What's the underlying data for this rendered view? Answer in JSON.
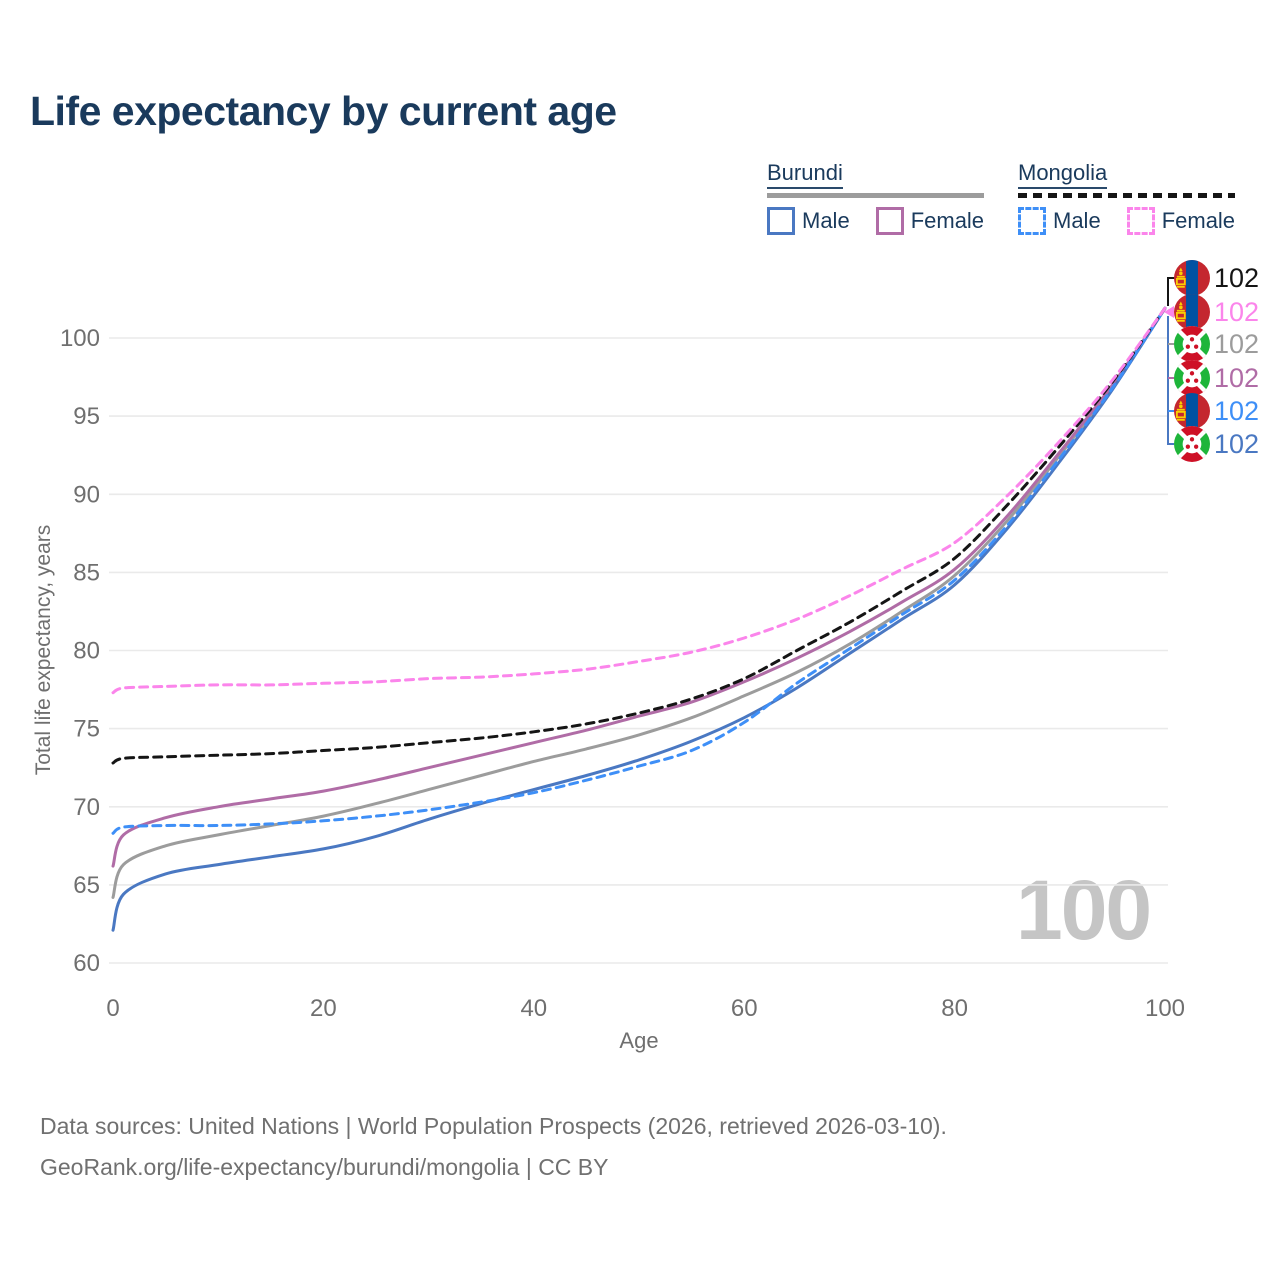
{
  "header": {
    "title": "Life expectancy by current age"
  },
  "legend": {
    "groups": [
      {
        "label": "Burundi",
        "line_style": "solid",
        "items": [
          {
            "label": "Male",
            "color": "#4A78C2"
          },
          {
            "label": "Female",
            "color": "#B06CA6"
          }
        ]
      },
      {
        "label": "Mongolia",
        "line_style": "dashed",
        "items": [
          {
            "label": "Male",
            "color": "#3E8FF7"
          },
          {
            "label": "Female",
            "color": "#FB85EB"
          }
        ]
      }
    ]
  },
  "chart": {
    "watermark": "100"
  },
  "chart_data": {
    "type": "line",
    "title": "Life expectancy by current age",
    "xlabel": "Age",
    "ylabel": "Total life expectancy, years",
    "xlim": [
      0,
      100
    ],
    "ylim": [
      58.5,
      104
    ],
    "x_ticks": [
      0,
      20,
      40,
      60,
      80,
      100
    ],
    "y_ticks": [
      60,
      65,
      70,
      75,
      80,
      85,
      90,
      95,
      100
    ],
    "grid": "horizontal-only",
    "legend_position": "top-right",
    "x": [
      0,
      1,
      5,
      10,
      15,
      20,
      25,
      30,
      35,
      40,
      45,
      50,
      55,
      60,
      65,
      70,
      75,
      80,
      85,
      90,
      95,
      100
    ],
    "series": [
      {
        "name": "Burundi Total",
        "country": "Burundi",
        "sex": "Total",
        "color": "#9C9C9C",
        "dash": false,
        "values": [
          64.2,
          66.3,
          67.5,
          68.2,
          68.8,
          69.4,
          70.2,
          71.1,
          72.0,
          72.9,
          73.7,
          74.6,
          75.7,
          77.1,
          78.6,
          80.4,
          82.5,
          84.8,
          88.3,
          92.5,
          96.9,
          101.9
        ]
      },
      {
        "name": "Burundi Female",
        "country": "Burundi",
        "sex": "Female",
        "color": "#B06CA6",
        "dash": false,
        "values": [
          66.2,
          68.2,
          69.3,
          70.0,
          70.5,
          71.0,
          71.7,
          72.5,
          73.3,
          74.1,
          74.9,
          75.8,
          76.7,
          78.0,
          79.5,
          81.2,
          83.1,
          85.2,
          88.6,
          92.7,
          97.0,
          101.9
        ]
      },
      {
        "name": "Burundi Male",
        "country": "Burundi",
        "sex": "Male",
        "color": "#4A78C2",
        "dash": false,
        "values": [
          62.1,
          64.4,
          65.7,
          66.3,
          66.8,
          67.3,
          68.1,
          69.2,
          70.2,
          71.1,
          72.0,
          73.0,
          74.2,
          75.7,
          77.6,
          79.8,
          82.0,
          84.2,
          87.8,
          92.1,
          96.7,
          101.9
        ]
      },
      {
        "name": "Mongolia Male",
        "country": "Mongolia",
        "sex": "Male",
        "color": "#3E8FF7",
        "dash": true,
        "values": [
          68.3,
          68.7,
          68.8,
          68.8,
          68.9,
          69.1,
          69.4,
          69.8,
          70.3,
          70.9,
          71.7,
          72.6,
          73.6,
          75.4,
          77.9,
          80.1,
          82.3,
          84.5,
          88.0,
          92.3,
          96.8,
          101.9
        ]
      },
      {
        "name": "Mongolia Total",
        "country": "Mongolia",
        "sex": "Total",
        "color": "#151515",
        "dash": true,
        "values": [
          72.8,
          73.1,
          73.2,
          73.3,
          73.4,
          73.6,
          73.8,
          74.1,
          74.4,
          74.8,
          75.3,
          76.0,
          76.9,
          78.2,
          80.0,
          81.8,
          83.8,
          85.9,
          89.3,
          93.1,
          97.2,
          101.9
        ]
      },
      {
        "name": "Mongolia Female",
        "country": "Mongolia",
        "sex": "Female",
        "color": "#FB85EB",
        "dash": true,
        "values": [
          77.3,
          77.6,
          77.7,
          77.8,
          77.8,
          77.9,
          78.0,
          78.2,
          78.3,
          78.5,
          78.8,
          79.3,
          79.9,
          80.8,
          82.0,
          83.5,
          85.2,
          86.9,
          89.9,
          93.4,
          97.3,
          101.9
        ]
      }
    ],
    "end_labels": [
      {
        "flag": "mongolia",
        "series": "Mongolia Total",
        "value": "102",
        "color": "#151515"
      },
      {
        "flag": "mongolia",
        "series": "Mongolia Female",
        "value": "102",
        "color": "#FB85EB"
      },
      {
        "flag": "burundi",
        "series": "Burundi Total",
        "value": "102",
        "color": "#9C9C9C"
      },
      {
        "flag": "burundi",
        "series": "Burundi Female",
        "value": "102",
        "color": "#B06CA6"
      },
      {
        "flag": "mongolia",
        "series": "Mongolia Male",
        "value": "102",
        "color": "#3E8FF7"
      },
      {
        "flag": "burundi",
        "series": "Burundi Male",
        "value": "102",
        "color": "#4A78C2"
      }
    ]
  },
  "footer": {
    "line1": "Data sources: United Nations | World Population Prospects (2026, retrieved 2026-03-10).",
    "line2": "GeoRank.org/life-expectancy/burundi/mongolia | CC BY"
  }
}
